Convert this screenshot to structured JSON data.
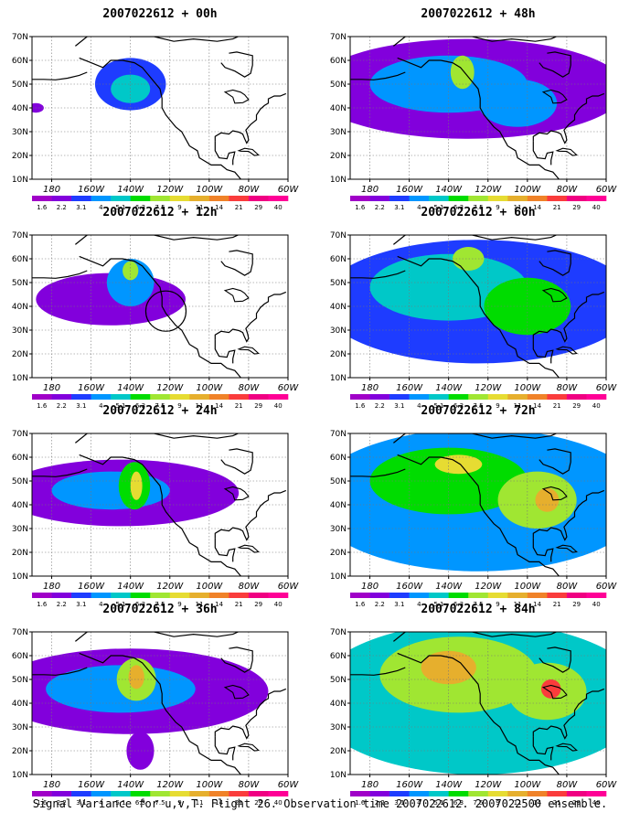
{
  "panels": [
    {
      "title": "2007022612 + 00h",
      "level": 0
    },
    {
      "title": "2007022612 + 12h",
      "level": 1
    },
    {
      "title": "2007022612 + 24h",
      "level": 2
    },
    {
      "title": "2007022612 + 36h",
      "level": 3
    },
    {
      "title": "2007022612 + 48h",
      "level": 4
    },
    {
      "title": "2007022612 + 60h",
      "level": 5
    },
    {
      "title": "2007022612 + 72h",
      "level": 6
    },
    {
      "title": "2007022612 + 84h",
      "level": 7
    }
  ],
  "lat_labels": [
    "70N",
    "60N",
    "50N",
    "40N",
    "30N",
    "20N",
    "10N"
  ],
  "lon_labels": [
    "180",
    "160W",
    "140W",
    "120W",
    "100W",
    "80W",
    "60W"
  ],
  "colorbar": {
    "labels": [
      "1.6",
      "2.2",
      "3.1",
      "4",
      "5.1",
      "6.3",
      "7.5",
      "9",
      "11",
      "14",
      "21",
      "29",
      "40"
    ],
    "colors": [
      "#a000c8",
      "#8200dc",
      "#1e3cff",
      "#0096ff",
      "#00c8c8",
      "#00dc00",
      "#a0e632",
      "#e6dc32",
      "#e6af2d",
      "#f08228",
      "#fa3c3c",
      "#f00082",
      "#ff0096"
    ]
  },
  "caption": "Signal Variance for u,v,T. Flight 26. Observation time 2007022612. 2007022500 ensemble."
}
